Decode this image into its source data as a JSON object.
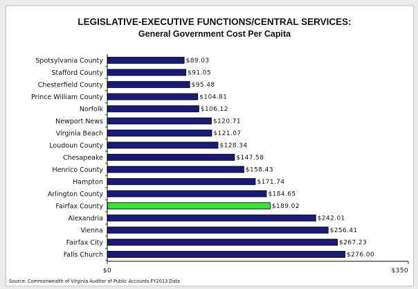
{
  "chart_data": {
    "type": "bar",
    "orientation": "horizontal",
    "title": "LEGISLATIVE-EXECUTIVE FUNCTIONS/CENTRAL SERVICES:",
    "subtitle": "General Government Cost Per Capita",
    "categories": [
      "Spotsylvania County",
      "Stafford County",
      "Chesterfield County",
      "Prince William County",
      "Norfolk",
      "Newport News",
      "Virginia Beach",
      "Loudoun County",
      "Chesapeake",
      "Henrico County",
      "Hampton",
      "Arlington County",
      "Fairfax County",
      "Alexandria",
      "Vienna",
      "Fairfax City",
      "Falls Church"
    ],
    "values": [
      89.03,
      91.05,
      95.48,
      104.81,
      106.12,
      120.71,
      121.07,
      128.34,
      147.58,
      158.43,
      171.74,
      184.65,
      189.02,
      242.01,
      256.41,
      267.23,
      276.0
    ],
    "value_labels": [
      "$89.03",
      "$91.05",
      "$95.48",
      "$104.81",
      "$106.12",
      "$120.71",
      "$121.07",
      "$128.34",
      "$147.58",
      "$158.43",
      "$171.74",
      "$184.65",
      "$189.02",
      "$242.01",
      "$256.41",
      "$267.23",
      "$276.00"
    ],
    "highlight_category": "Fairfax County",
    "xlim": [
      0,
      350
    ],
    "x_ticks": [
      0,
      350
    ],
    "x_tick_labels": [
      "$0",
      "$350"
    ],
    "grid": false,
    "colors": {
      "bar": "#1a1a78",
      "highlight": "#33e633",
      "bar_outline": "#000000"
    }
  },
  "source_note": "Source: Commonwealth of Virginia Auditor of Public Accounts FY2013 Data"
}
